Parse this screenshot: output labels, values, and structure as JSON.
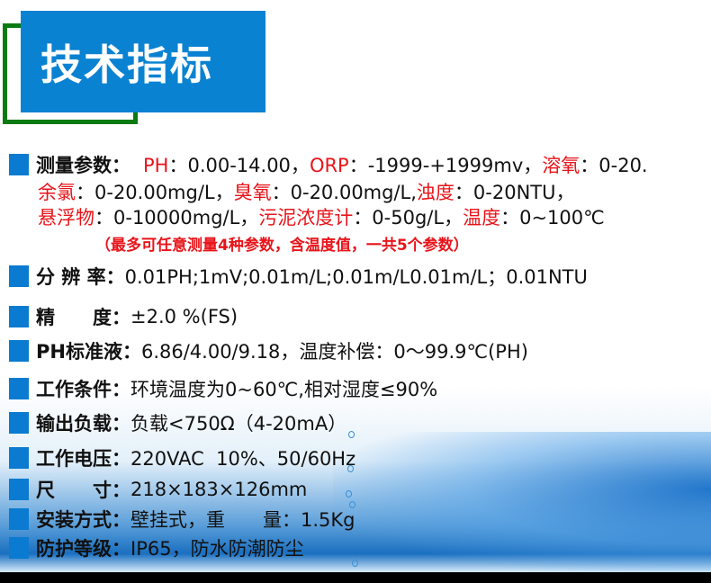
{
  "title": "技术指标",
  "colors": {
    "accent_blue": "#0a82d2",
    "frame_green": "#0a7a12",
    "highlight_red": "#e8141a"
  },
  "measure": {
    "label": "测量参数：",
    "line1": [
      {
        "t": "PH",
        "red": true
      },
      {
        "t": "：0.00-14.00，",
        "red": false
      },
      {
        "t": "ORP",
        "red": true
      },
      {
        "t": "：-1999-+1999mv，",
        "red": false
      },
      {
        "t": "溶氧",
        "red": true
      },
      {
        "t": "：0-20.",
        "red": false
      }
    ],
    "line2": [
      {
        "t": "余氯",
        "red": true
      },
      {
        "t": "：0-20.00mg/L，",
        "red": false
      },
      {
        "t": "臭氧",
        "red": true
      },
      {
        "t": "：0-20.00mg/L,",
        "red": false
      },
      {
        "t": "浊度",
        "red": true
      },
      {
        "t": "：0-20NTU，",
        "red": false
      }
    ],
    "line3": [
      {
        "t": "悬浮物",
        "red": true
      },
      {
        "t": "：0-10000mg/L，",
        "red": false
      },
      {
        "t": "污泥浓度计",
        "red": true
      },
      {
        "t": "：0-50g/L，",
        "red": false
      },
      {
        "t": "温度",
        "red": true
      },
      {
        "t": "：0~100℃",
        "red": false
      }
    ],
    "note": "（最多可任意测量4种参数，含温度值，一共5个参数）"
  },
  "specs": [
    {
      "label": "分 辨 率：",
      "value": "0.01PH;1mV;0.01m/L;0.01m/L0.01m/L；0.01NTU"
    },
    {
      "label": "精　　度：",
      "value": "±2.0 %(FS)"
    },
    {
      "label": "PH标准液：",
      "value": "6.86/4.00/9.18，温度补偿：0～99.9℃(PH)"
    },
    {
      "label": "工作条件：",
      "value": "环境温度为0~60℃,相对湿度≤90%"
    },
    {
      "label": "输出负载：",
      "value": "负载<750Ω（4-20mA）"
    },
    {
      "label": "工作电压：",
      "value": "220VAC  10%、50/60Hz"
    },
    {
      "label": "尺　　寸：",
      "value": "218×183×126mm"
    },
    {
      "label": "安装方式：",
      "value": "壁挂式，重　　量：1.5Kg"
    },
    {
      "label": "防护等级：",
      "value": "IP65，防水防潮防尘"
    }
  ]
}
